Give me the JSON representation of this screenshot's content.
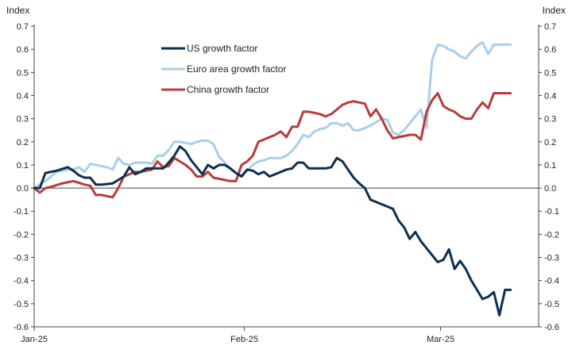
{
  "chart_data": {
    "type": "line",
    "title": "",
    "ylabel_left": "Index",
    "ylabel_right": "Index",
    "xlabel": "",
    "ylim": [
      -0.6,
      0.7
    ],
    "yticks": [
      -0.6,
      -0.5,
      -0.4,
      -0.3,
      -0.2,
      -0.1,
      0.0,
      0.1,
      0.2,
      0.3,
      0.4,
      0.5,
      0.6,
      0.7
    ],
    "xlim": [
      0,
      90
    ],
    "xticks": [
      {
        "x": 0,
        "label": "Jan-25"
      },
      {
        "x": 37.5,
        "label": "Feb-25"
      },
      {
        "x": 72.5,
        "label": "Mar-25"
      }
    ],
    "legend_position": "top-center",
    "series": [
      {
        "name": "US growth factor",
        "color": "#0d2f52",
        "x": [
          0,
          1,
          2,
          4,
          6,
          7,
          8,
          9,
          10,
          11,
          12,
          14,
          15,
          16,
          17,
          18,
          19,
          20,
          21,
          22,
          23,
          24,
          25,
          26,
          27,
          28,
          29,
          30,
          31,
          32,
          33,
          34,
          35,
          36,
          37,
          38,
          39,
          40,
          41,
          42,
          43,
          44,
          45,
          46,
          47,
          48,
          49,
          50,
          51,
          52,
          53,
          54,
          55,
          56,
          57,
          58,
          59,
          60,
          61,
          62,
          63,
          64,
          65,
          66,
          67,
          68,
          69,
          70,
          71,
          72,
          73,
          74,
          75,
          76,
          77,
          78,
          79,
          80,
          81,
          82,
          83,
          84,
          85,
          86,
          87,
          88
        ],
        "values": [
          0.0,
          0.0,
          0.065,
          0.075,
          0.09,
          0.075,
          0.055,
          0.045,
          0.045,
          0.015,
          0.015,
          0.02,
          0.035,
          0.05,
          0.09,
          0.06,
          0.07,
          0.085,
          0.085,
          0.085,
          0.085,
          0.11,
          0.14,
          0.18,
          0.16,
          0.12,
          0.09,
          0.06,
          0.1,
          0.085,
          0.1,
          0.1,
          0.085,
          0.065,
          0.05,
          0.08,
          0.075,
          0.06,
          0.07,
          0.05,
          0.06,
          0.07,
          0.08,
          0.085,
          0.11,
          0.11,
          0.085,
          0.085,
          0.085,
          0.085,
          0.09,
          0.13,
          0.115,
          0.08,
          0.045,
          0.02,
          0.0,
          -0.05,
          -0.06,
          -0.07,
          -0.08,
          -0.09,
          -0.14,
          -0.17,
          -0.22,
          -0.19,
          -0.23,
          -0.26,
          -0.29,
          -0.32,
          -0.31,
          -0.265,
          -0.35,
          -0.315,
          -0.35,
          -0.4,
          -0.44,
          -0.48,
          -0.47,
          -0.45,
          -0.55,
          -0.44,
          -0.44,
          -0.44,
          -0.44,
          -0.44
        ]
      },
      {
        "name": "Euro area growth factor",
        "color": "#a9cfe8",
        "x": [
          0,
          2,
          4,
          6,
          7,
          8,
          9,
          10,
          11,
          12,
          13,
          14,
          15,
          16,
          17,
          18,
          19,
          20,
          21,
          22,
          23,
          24,
          25,
          26,
          27,
          28,
          29,
          30,
          31,
          32,
          33,
          34,
          35,
          36,
          37,
          38,
          39,
          40,
          41,
          42,
          43,
          44,
          45,
          46,
          47,
          48,
          49,
          50,
          51,
          52,
          53,
          54,
          55,
          56,
          57,
          58,
          59,
          60,
          61,
          62,
          63,
          64,
          65,
          66,
          67,
          68,
          69,
          70,
          71,
          72,
          73,
          74,
          75,
          76,
          77,
          78,
          79,
          80,
          81,
          82,
          83,
          84,
          85,
          86,
          87,
          88
        ],
        "values": [
          0.0,
          0.03,
          0.07,
          0.08,
          0.08,
          0.09,
          0.07,
          0.105,
          0.1,
          0.095,
          0.09,
          0.08,
          0.13,
          0.105,
          0.1,
          0.11,
          0.11,
          0.11,
          0.105,
          0.14,
          0.14,
          0.165,
          0.2,
          0.2,
          0.195,
          0.19,
          0.2,
          0.205,
          0.205,
          0.19,
          0.135,
          0.11,
          0.085,
          0.065,
          0.055,
          0.075,
          0.1,
          0.115,
          0.12,
          0.13,
          0.13,
          0.13,
          0.14,
          0.16,
          0.19,
          0.23,
          0.22,
          0.245,
          0.255,
          0.26,
          0.28,
          0.28,
          0.27,
          0.28,
          0.25,
          0.25,
          0.26,
          0.27,
          0.285,
          0.3,
          0.295,
          0.24,
          0.23,
          0.25,
          0.28,
          0.31,
          0.34,
          0.26,
          0.555,
          0.62,
          0.615,
          0.6,
          0.59,
          0.57,
          0.56,
          0.59,
          0.615,
          0.63,
          0.58,
          0.62,
          0.62,
          0.62,
          0.62,
          0.62,
          0.62,
          0.62
        ]
      },
      {
        "name": "China growth factor",
        "color": "#b83b3b",
        "x": [
          0,
          1,
          2,
          3,
          5,
          7,
          9,
          10,
          11,
          12,
          13,
          14,
          15,
          16,
          17,
          18,
          19,
          20,
          21,
          22,
          23,
          24,
          25,
          26,
          27,
          28,
          29,
          30,
          31,
          32,
          33,
          34,
          35,
          36,
          37,
          38,
          39,
          40,
          41,
          42,
          43,
          44,
          45,
          46,
          47,
          48,
          49,
          50,
          51,
          52,
          53,
          54,
          55,
          56,
          57,
          58,
          59,
          60,
          61,
          62,
          63,
          64,
          65,
          66,
          67,
          68,
          69,
          70,
          71,
          72,
          73,
          74,
          75,
          76,
          77,
          78,
          79,
          80,
          81,
          82,
          83,
          84,
          85,
          86,
          87,
          88
        ],
        "values": [
          0.0,
          -0.02,
          0.0,
          0.005,
          0.02,
          0.03,
          0.015,
          0.01,
          -0.03,
          -0.03,
          -0.035,
          -0.04,
          0.0,
          0.05,
          0.06,
          0.07,
          0.07,
          0.075,
          0.08,
          0.115,
          0.09,
          0.095,
          0.13,
          0.115,
          0.1,
          0.08,
          0.05,
          0.05,
          0.07,
          0.045,
          0.04,
          0.035,
          0.03,
          0.03,
          0.1,
          0.115,
          0.14,
          0.2,
          0.21,
          0.22,
          0.23,
          0.245,
          0.22,
          0.265,
          0.265,
          0.33,
          0.33,
          0.325,
          0.32,
          0.31,
          0.32,
          0.34,
          0.36,
          0.37,
          0.375,
          0.37,
          0.365,
          0.31,
          0.34,
          0.3,
          0.25,
          0.215,
          0.22,
          0.225,
          0.23,
          0.23,
          0.21,
          0.33,
          0.38,
          0.41,
          0.355,
          0.34,
          0.33,
          0.31,
          0.3,
          0.3,
          0.34,
          0.37,
          0.345,
          0.41,
          0.41,
          0.41,
          0.41,
          0.41,
          0.41,
          0.41
        ]
      }
    ]
  }
}
